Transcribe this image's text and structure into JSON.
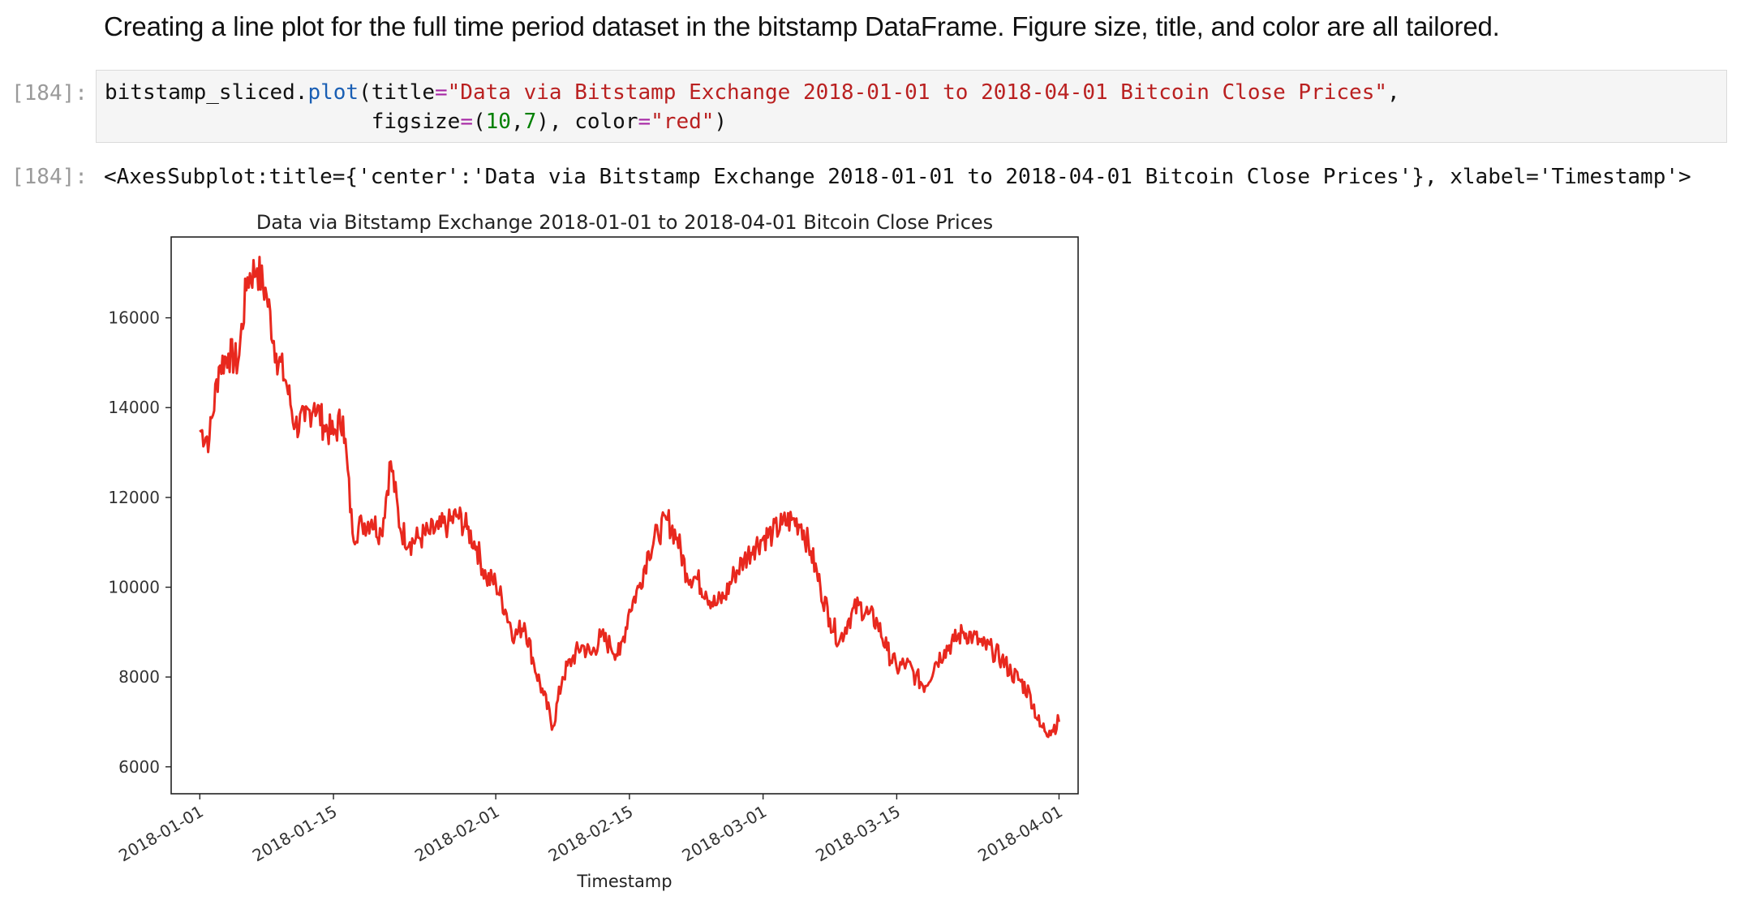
{
  "markdown": {
    "text": "Creating a line plot for the full time period dataset in the bitstamp DataFrame. Figure size, title, and color are all tailored."
  },
  "cell": {
    "in_prompt": "[184]:",
    "out_prompt": "[184]:",
    "code": {
      "line1_obj": "bitstamp_sliced.",
      "line1_fn": "plot",
      "line1_open": "(title",
      "line1_eq": "=",
      "line1_str": "\"Data via Bitstamp Exchange 2018-01-01 to 2018-04-01 Bitcoin Close Prices\"",
      "line1_end": ",",
      "line2_indent": "                     ",
      "line2_a": "figsize",
      "line2_eq1": "=",
      "line2_p1": "(",
      "line2_n1": "10",
      "line2_comma": ",",
      "line2_n2": "7",
      "line2_p2": "), color",
      "line2_eq2": "=",
      "line2_str": "\"red\"",
      "line2_end": ")"
    },
    "output_repr": "<AxesSubplot:title={'center':'Data via Bitstamp Exchange 2018-01-01 to 2018-04-01 Bitcoin Close Prices'}, xlabel='Timestamp'>"
  },
  "chart_data": {
    "type": "line",
    "title": "Data via Bitstamp Exchange 2018-01-01 to 2018-04-01 Bitcoin Close Prices",
    "xlabel": "Timestamp",
    "ylabel": "",
    "color": "#e8281e",
    "xlim": [
      "2017-12-29",
      "2018-04-03"
    ],
    "ylim": [
      5400,
      17800
    ],
    "x_ticks": [
      "2018-01-01",
      "2018-01-15",
      "2018-02-01",
      "2018-02-15",
      "2018-03-01",
      "2018-03-15",
      "2018-04-01"
    ],
    "y_ticks": [
      6000,
      8000,
      10000,
      12000,
      14000,
      16000
    ],
    "grid": false,
    "series": [
      {
        "x": [
          "2018-01-01",
          "2018-01-02",
          "2018-01-03",
          "2018-01-04",
          "2018-01-05",
          "2018-01-06",
          "2018-01-07",
          "2018-01-08",
          "2018-01-09",
          "2018-01-10",
          "2018-01-11",
          "2018-01-12",
          "2018-01-13",
          "2018-01-14",
          "2018-01-15",
          "2018-01-16",
          "2018-01-17",
          "2018-01-18",
          "2018-01-19",
          "2018-01-20",
          "2018-01-21",
          "2018-01-22",
          "2018-01-23",
          "2018-01-24",
          "2018-01-25",
          "2018-01-26",
          "2018-01-27",
          "2018-01-28",
          "2018-01-29",
          "2018-01-30",
          "2018-01-31",
          "2018-02-01",
          "2018-02-02",
          "2018-02-03",
          "2018-02-04",
          "2018-02-05",
          "2018-02-06",
          "2018-02-07",
          "2018-02-08",
          "2018-02-09",
          "2018-02-10",
          "2018-02-11",
          "2018-02-12",
          "2018-02-13",
          "2018-02-14",
          "2018-02-15",
          "2018-02-16",
          "2018-02-17",
          "2018-02-18",
          "2018-02-19",
          "2018-02-20",
          "2018-02-21",
          "2018-02-22",
          "2018-02-23",
          "2018-02-24",
          "2018-02-25",
          "2018-02-26",
          "2018-02-27",
          "2018-02-28",
          "2018-03-01",
          "2018-03-02",
          "2018-03-03",
          "2018-03-04",
          "2018-03-05",
          "2018-03-06",
          "2018-03-07",
          "2018-03-08",
          "2018-03-09",
          "2018-03-10",
          "2018-03-11",
          "2018-03-12",
          "2018-03-13",
          "2018-03-14",
          "2018-03-15",
          "2018-03-16",
          "2018-03-17",
          "2018-03-18",
          "2018-03-19",
          "2018-03-20",
          "2018-03-21",
          "2018-03-22",
          "2018-03-23",
          "2018-03-24",
          "2018-03-25",
          "2018-03-26",
          "2018-03-27",
          "2018-03-28",
          "2018-03-29",
          "2018-03-30",
          "2018-03-31",
          "2018-04-01"
        ],
        "y": [
          13500,
          13300,
          14900,
          15200,
          15000,
          16900,
          17100,
          16500,
          15200,
          14600,
          13600,
          13700,
          14100,
          13600,
          13400,
          13800,
          11200,
          11400,
          11500,
          11200,
          12800,
          11300,
          11000,
          11100,
          11200,
          11300,
          11400,
          11600,
          11300,
          10900,
          10200,
          10100,
          9500,
          8900,
          9200,
          8300,
          7600,
          6900,
          8000,
          8400,
          8700,
          8500,
          8900,
          8700,
          8500,
          9500,
          10000,
          10800,
          11200,
          11500,
          11100,
          10300,
          10200,
          9900,
          9600,
          9800,
          10300,
          10600,
          10900,
          11100,
          11200,
          11400,
          11500,
          11400,
          10800,
          10000,
          9300,
          8800,
          9300,
          9600,
          9400,
          9200,
          8600,
          8200,
          8300,
          8000,
          7800,
          8300,
          8600,
          8800,
          9000,
          8900,
          8700,
          8600,
          8400,
          8100,
          7900,
          7600,
          6900,
          6800,
          7000
        ]
      }
    ]
  }
}
